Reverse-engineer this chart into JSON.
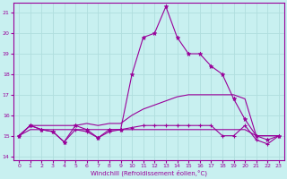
{
  "xlabel": "Windchill (Refroidissement éolien,°C)",
  "background_color": "#c8f0f0",
  "grid_color": "#b0dede",
  "line_color": "#990099",
  "xlim": [
    -0.5,
    23.5
  ],
  "ylim": [
    13.8,
    21.5
  ],
  "yticks": [
    14,
    15,
    16,
    17,
    18,
    19,
    20,
    21
  ],
  "xticks": [
    0,
    1,
    2,
    3,
    4,
    5,
    6,
    7,
    8,
    9,
    10,
    11,
    12,
    13,
    14,
    15,
    16,
    17,
    18,
    19,
    20,
    21,
    22,
    23
  ],
  "line1_x": [
    0,
    1,
    2,
    3,
    4,
    5,
    6,
    7,
    8,
    9,
    10,
    11,
    12,
    13,
    14,
    15,
    16,
    17,
    18,
    19,
    20,
    21,
    22,
    23
  ],
  "line1_y": [
    15.0,
    15.5,
    15.3,
    15.2,
    14.7,
    15.5,
    15.3,
    14.9,
    15.3,
    15.3,
    18.0,
    19.8,
    20.0,
    21.3,
    19.8,
    19.0,
    19.0,
    18.4,
    18.0,
    16.8,
    15.8,
    15.0,
    14.8,
    15.0
  ],
  "line2_x": [
    0,
    1,
    2,
    3,
    4,
    5,
    6,
    7,
    8,
    9,
    10,
    11,
    12,
    13,
    14,
    15,
    16,
    17,
    18,
    19,
    20,
    21,
    22,
    23
  ],
  "line2_y": [
    15.0,
    15.5,
    15.3,
    15.2,
    14.7,
    15.3,
    15.2,
    14.9,
    15.2,
    15.3,
    15.4,
    15.5,
    15.5,
    15.5,
    15.5,
    15.5,
    15.5,
    15.5,
    15.0,
    15.0,
    15.5,
    14.8,
    14.6,
    15.0
  ],
  "line3_x": [
    0,
    1,
    2,
    3,
    4,
    5,
    6,
    7,
    8,
    9,
    10,
    11,
    12,
    13,
    14,
    15,
    16,
    17,
    18,
    19,
    20,
    21,
    22,
    23
  ],
  "line3_y": [
    15.0,
    15.5,
    15.5,
    15.5,
    15.5,
    15.5,
    15.6,
    15.5,
    15.6,
    15.6,
    16.0,
    16.3,
    16.5,
    16.7,
    16.9,
    17.0,
    17.0,
    17.0,
    17.0,
    17.0,
    16.8,
    15.0,
    15.0,
    15.0
  ],
  "line4_x": [
    0,
    1,
    2,
    3,
    4,
    5,
    6,
    7,
    8,
    9,
    10,
    11,
    12,
    13,
    14,
    15,
    16,
    17,
    18,
    19,
    20,
    21,
    22,
    23
  ],
  "line4_y": [
    15.0,
    15.3,
    15.3,
    15.3,
    15.3,
    15.3,
    15.3,
    15.3,
    15.3,
    15.3,
    15.3,
    15.3,
    15.3,
    15.3,
    15.3,
    15.3,
    15.3,
    15.3,
    15.3,
    15.3,
    15.3,
    15.0,
    15.0,
    15.0
  ]
}
